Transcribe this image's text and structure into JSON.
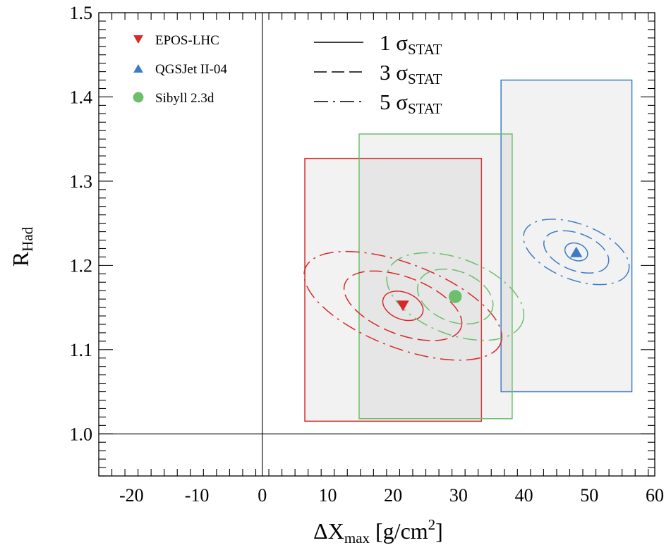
{
  "chart_data": {
    "type": "scatter",
    "xlim": [
      -25,
      60
    ],
    "ylim": [
      0.95,
      1.5
    ],
    "x_ticks": [
      -20,
      -10,
      0,
      10,
      20,
      30,
      40,
      50,
      60
    ],
    "x_tick_labels": [
      "-20",
      "-10",
      "0",
      "10",
      "20",
      "30",
      "40",
      "50",
      "60"
    ],
    "y_ticks": [
      1.0,
      1.1,
      1.2,
      1.3,
      1.4,
      1.5
    ],
    "y_tick_labels": [
      "1.0",
      "1.1",
      "1.2",
      "1.3",
      "1.4",
      "1.5"
    ],
    "xlabel": {
      "main": "ΔX",
      "sub": "max",
      "unit": " [g/cm",
      "sup": "2",
      "close": "]"
    },
    "ylabel": {
      "main": "R",
      "sub": "Had"
    },
    "reference_lines": {
      "x": 0,
      "y": 1.0
    },
    "series": [
      {
        "name": "EPOS-LHC",
        "marker": "triangle-down",
        "color": "#d62a2a",
        "point": {
          "x": 21.5,
          "y": 1.152
        },
        "box": {
          "x": [
            6.5,
            33.5
          ],
          "y": [
            1.015,
            1.327
          ]
        },
        "contours": [
          {
            "sigma": 1,
            "style": "solid",
            "rx": 3.2,
            "ry": 0.016
          },
          {
            "sigma": 3,
            "style": "dashed",
            "rx": 9.5,
            "ry": 0.034
          },
          {
            "sigma": 5,
            "style": "dashdot",
            "rx": 16.0,
            "ry": 0.05
          }
        ]
      },
      {
        "name": "QGSJet II-04",
        "marker": "triangle-up",
        "color": "#3d7cc4",
        "point": {
          "x": 48.0,
          "y": 1.216
        },
        "box": {
          "x": [
            36.5,
            56.5
          ],
          "y": [
            1.05,
            1.42
          ]
        },
        "contours": [
          {
            "sigma": 1,
            "style": "solid",
            "rx": 1.8,
            "ry": 0.01
          },
          {
            "sigma": 3,
            "style": "dashed",
            "rx": 5.2,
            "ry": 0.022
          },
          {
            "sigma": 5,
            "style": "dashdot",
            "rx": 8.5,
            "ry": 0.033
          }
        ]
      },
      {
        "name": "Sibyll 2.3d",
        "marker": "circle",
        "color": "#6cc06c",
        "point": {
          "x": 29.5,
          "y": 1.163
        },
        "box": {
          "x": [
            14.8,
            38.2
          ],
          "y": [
            1.018,
            1.356
          ]
        },
        "contours": [
          {
            "sigma": 3,
            "style": "dashed",
            "rx": 6.0,
            "ry": 0.03
          },
          {
            "sigma": 5,
            "style": "dashdot",
            "rx": 11.0,
            "ry": 0.045
          }
        ]
      }
    ],
    "legend_models": [
      "EPOS-LHC",
      "QGSJet II-04",
      "Sibyll 2.3d"
    ],
    "legend_sigma": [
      {
        "label": "1 σ",
        "sub": "STAT",
        "style": "solid"
      },
      {
        "label": "3 σ",
        "sub": "STAT",
        "style": "dashed"
      },
      {
        "label": "5 σ",
        "sub": "STAT",
        "style": "dashdot"
      }
    ]
  }
}
